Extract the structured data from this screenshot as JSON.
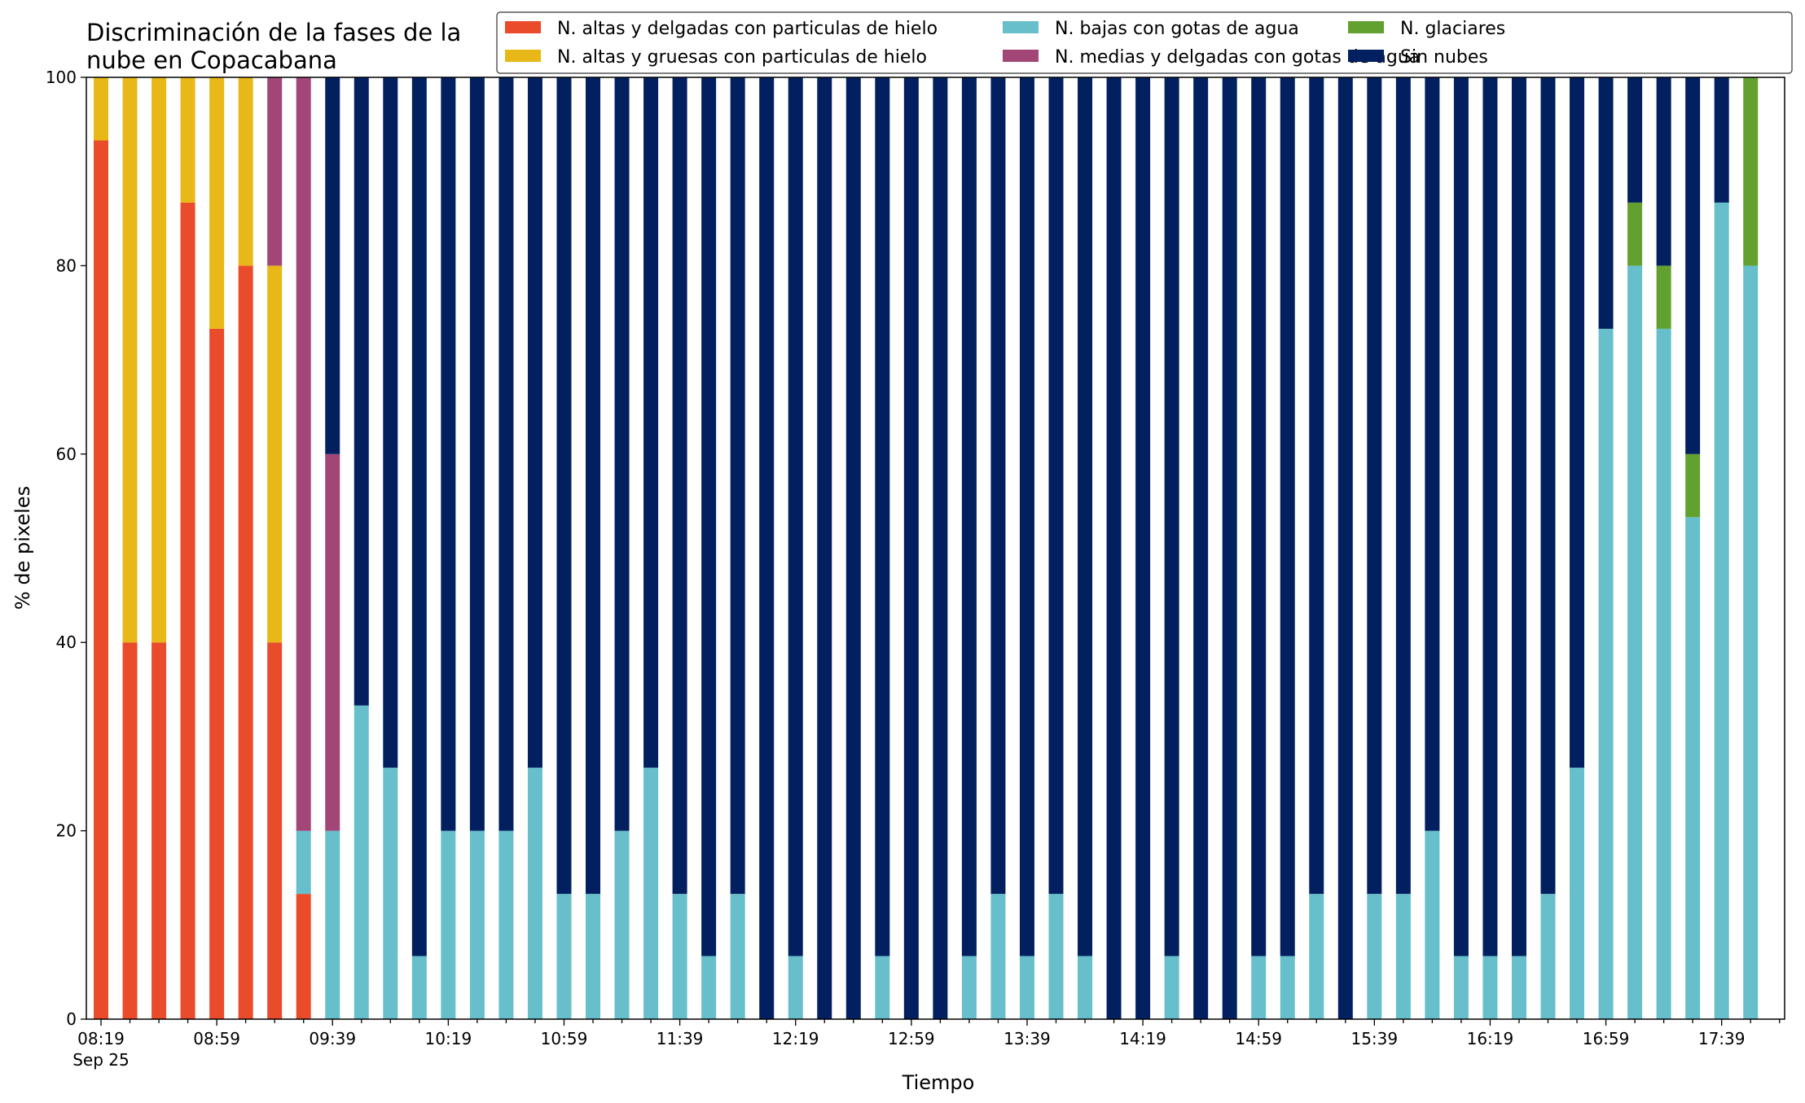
{
  "chart_data": {
    "type": "bar",
    "stacked": true,
    "title_lines": [
      "Discriminación de la fases de la",
      "nube en Copacabana"
    ],
    "xlabel": "Tiempo",
    "ylabel": "% de pixeles",
    "ylim": [
      0,
      100
    ],
    "y_ticks": [
      "0",
      "20",
      "40",
      "60",
      "80",
      "100"
    ],
    "x_tick_labels": [
      "08:19",
      "08:59",
      "09:39",
      "10:19",
      "10:59",
      "11:39",
      "12:19",
      "12:59",
      "13:39",
      "14:19",
      "14:59",
      "15:39",
      "16:19",
      "16:59",
      "17:39"
    ],
    "x_date_label": "Sep 25",
    "grid": false,
    "legend_position": "top-right",
    "series": [
      {
        "name": "N. altas y delgadas con particulas de hielo",
        "color": "#ea4b2a",
        "values": [
          93.3,
          40,
          40,
          86.7,
          73.3,
          80,
          40,
          13.3,
          0,
          0,
          0,
          0,
          0,
          0,
          0,
          0,
          0,
          0,
          0,
          0,
          0,
          0,
          0,
          0,
          0,
          0,
          0,
          0,
          0,
          0,
          0,
          0,
          0,
          0,
          0,
          0,
          0,
          0,
          0,
          0,
          0,
          0,
          0,
          0,
          0,
          0,
          0,
          0,
          0,
          0,
          0,
          0,
          0,
          0,
          0,
          0,
          0,
          0,
          0
        ]
      },
      {
        "name": "N. altas y gruesas con particulas de hielo",
        "color": "#e8b818",
        "values": [
          6.7,
          60,
          60,
          13.3,
          26.7,
          20,
          40,
          0,
          0,
          0,
          0,
          0,
          0,
          0,
          0,
          0,
          0,
          0,
          0,
          0,
          0,
          0,
          0,
          0,
          0,
          0,
          0,
          0,
          0,
          0,
          0,
          0,
          0,
          0,
          0,
          0,
          0,
          0,
          0,
          0,
          0,
          0,
          0,
          0,
          0,
          0,
          0,
          0,
          0,
          0,
          0,
          0,
          0,
          0,
          0,
          0,
          0,
          0,
          0
        ]
      },
      {
        "name": "N. bajas con gotas de agua",
        "color": "#66bfcb",
        "values": [
          0,
          0,
          0,
          0,
          0,
          0,
          0,
          6.7,
          20,
          33.3,
          26.7,
          6.7,
          20,
          20,
          20,
          26.7,
          13.3,
          13.3,
          20,
          26.7,
          13.3,
          6.7,
          13.3,
          0,
          6.7,
          0,
          0,
          6.7,
          0,
          0,
          6.7,
          13.3,
          6.7,
          13.3,
          6.7,
          0,
          0,
          6.7,
          0,
          0,
          6.7,
          6.7,
          13.3,
          0,
          13.3,
          13.3,
          20,
          6.7,
          6.7,
          6.7,
          13.3,
          26.7,
          73.3,
          80,
          73.3,
          53.3,
          86.7,
          80,
          0
        ]
      },
      {
        "name": "N. medias y delgadas con gotas de agua",
        "color": "#a24577",
        "values": [
          0,
          0,
          0,
          0,
          0,
          0,
          20,
          80,
          40,
          0,
          0,
          0,
          0,
          0,
          0,
          0,
          0,
          0,
          0,
          0,
          0,
          0,
          0,
          0,
          0,
          0,
          0,
          0,
          0,
          0,
          0,
          0,
          0,
          0,
          0,
          0,
          0,
          0,
          0,
          0,
          0,
          0,
          0,
          0,
          0,
          0,
          0,
          0,
          0,
          0,
          0,
          0,
          0,
          0,
          0,
          0,
          0,
          0,
          0
        ]
      },
      {
        "name": "N. glaciares",
        "color": "#62a12f",
        "values": [
          0,
          0,
          0,
          0,
          0,
          0,
          0,
          0,
          0,
          0,
          0,
          0,
          0,
          0,
          0,
          0,
          0,
          0,
          0,
          0,
          0,
          0,
          0,
          0,
          0,
          0,
          0,
          0,
          0,
          0,
          0,
          0,
          0,
          0,
          0,
          0,
          0,
          0,
          0,
          0,
          0,
          0,
          0,
          0,
          0,
          0,
          0,
          0,
          0,
          0,
          0,
          0,
          0,
          6.7,
          6.7,
          6.7,
          0,
          20,
          0
        ]
      },
      {
        "name": "Sin nubes",
        "color": "#022060",
        "values": [
          0,
          0,
          0,
          0,
          0,
          0,
          0,
          0,
          40,
          66.7,
          73.3,
          93.3,
          80,
          80,
          80,
          73.3,
          86.7,
          86.7,
          80,
          73.3,
          86.7,
          93.3,
          86.7,
          100,
          93.3,
          100,
          100,
          93.3,
          100,
          100,
          93.3,
          86.7,
          93.3,
          86.7,
          93.3,
          100,
          100,
          93.3,
          100,
          100,
          93.3,
          93.3,
          86.7,
          100,
          86.7,
          86.7,
          80,
          93.3,
          93.3,
          93.3,
          86.7,
          73.3,
          26.7,
          13.3,
          20,
          40,
          13.3,
          0,
          0
        ]
      }
    ]
  }
}
